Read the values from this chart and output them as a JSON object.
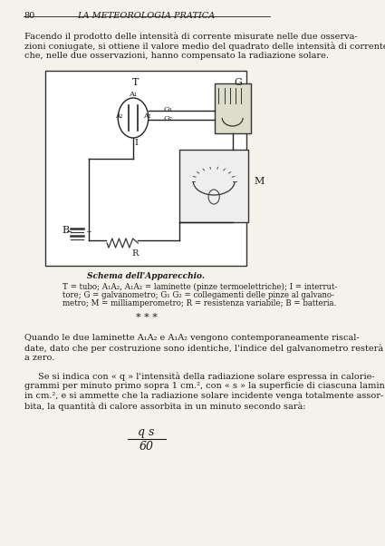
{
  "page_number": "80",
  "header_title": "LA METEOROLOGIA PRATICA",
  "bg_color": "#f5f2ec",
  "text_color": "#1a1a1a",
  "para1": "Facendo il prodotto delle intensità di corrente misurate nelle due osserva-\nzioni coniugate, si ottiene il valore medio del quadrato delle intensità di corrente\nche, nelle due osservazioni, hanno compensato la radiazione solare.",
  "caption_title": "Schema dell'Apparecchio.",
  "caption_body": "T = tubo; A₁A₂, A₁A₂ = laminette (pinze termoelettriche); I = interrut-\ntore; G = galvanometro; G₁ G₂ = collegamenti delle pinze al galvano-\nmetro; M = milliamperometro; R = resistenza variabile; B = batteria.",
  "dots": "* * *",
  "para2": "Quando le due laminette A₁A₂ e A₁A₂ vengono contemporaneamente riscal-\ndate, dato che per costruzione sono identiche, l'indice del galvanometro resterà\na zero.",
  "para3": "Se si indica con « q » l'intensità della radiazione solare espressa in calorie-\ngrammi per minuto primo sopra 1 cm.², con « s » la superficie di ciascuna lamina\nin cm.², e si ammette che la radiazione solare incidente venga totalmente assor-\nbita, la quantità di calore assorbita in un minuto secondo sarà:",
  "formula_num": "q s",
  "formula_den": "60"
}
